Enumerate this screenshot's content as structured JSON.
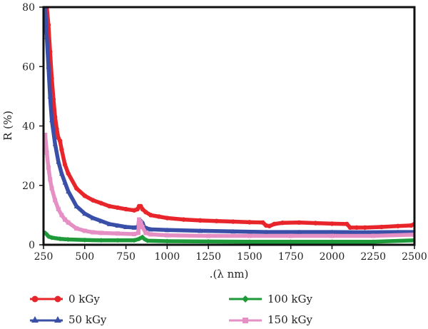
{
  "chart_data": {
    "type": "line",
    "title": "",
    "xlabel": ".(λ nm)",
    "ylabel": "R (%)",
    "xlim": [
      250,
      2500
    ],
    "ylim": [
      0,
      80
    ],
    "xticks": [
      250,
      500,
      750,
      1000,
      1250,
      1500,
      1750,
      2000,
      2250,
      2500
    ],
    "yticks": [
      0,
      20,
      40,
      60,
      80
    ],
    "grid": false,
    "legend_position": "bottom",
    "series": [
      {
        "name": "0 kGy",
        "color": "#e8252a",
        "marker": "circle",
        "points": [
          [
            270,
            80
          ],
          [
            280,
            74
          ],
          [
            290,
            65
          ],
          [
            300,
            56
          ],
          [
            310,
            49
          ],
          [
            320,
            43
          ],
          [
            330,
            39
          ],
          [
            340,
            36
          ],
          [
            350,
            35
          ],
          [
            360,
            32
          ],
          [
            380,
            27
          ],
          [
            400,
            24
          ],
          [
            450,
            19
          ],
          [
            500,
            16.5
          ],
          [
            550,
            15
          ],
          [
            600,
            14
          ],
          [
            650,
            13
          ],
          [
            700,
            12.5
          ],
          [
            750,
            12
          ],
          [
            800,
            11.6
          ],
          [
            820,
            12
          ],
          [
            830,
            13
          ],
          [
            840,
            13
          ],
          [
            850,
            12
          ],
          [
            870,
            11
          ],
          [
            900,
            10
          ],
          [
            950,
            9.5
          ],
          [
            1000,
            9
          ],
          [
            1100,
            8.5
          ],
          [
            1200,
            8.2
          ],
          [
            1300,
            8
          ],
          [
            1400,
            7.8
          ],
          [
            1500,
            7.6
          ],
          [
            1580,
            7.5
          ],
          [
            1600,
            6.5
          ],
          [
            1620,
            6.3
          ],
          [
            1650,
            7
          ],
          [
            1700,
            7.4
          ],
          [
            1800,
            7.5
          ],
          [
            1900,
            7.3
          ],
          [
            2000,
            7.1
          ],
          [
            2090,
            7
          ],
          [
            2110,
            5.8
          ],
          [
            2150,
            5.8
          ],
          [
            2200,
            5.8
          ],
          [
            2300,
            6
          ],
          [
            2400,
            6.3
          ],
          [
            2480,
            6.5
          ],
          [
            2500,
            7
          ]
        ]
      },
      {
        "name": "50 kGy",
        "color": "#3a4fa8",
        "marker": "triangle",
        "points": [
          [
            260,
            80
          ],
          [
            270,
            70
          ],
          [
            280,
            60
          ],
          [
            290,
            50
          ],
          [
            300,
            42
          ],
          [
            320,
            34
          ],
          [
            340,
            28
          ],
          [
            360,
            24
          ],
          [
            380,
            21
          ],
          [
            400,
            18
          ],
          [
            450,
            13
          ],
          [
            500,
            10.5
          ],
          [
            550,
            9
          ],
          [
            600,
            8
          ],
          [
            650,
            7
          ],
          [
            700,
            6.5
          ],
          [
            750,
            6
          ],
          [
            800,
            5.8
          ],
          [
            825,
            6
          ],
          [
            830,
            8.5
          ],
          [
            840,
            8
          ],
          [
            850,
            7.5
          ],
          [
            860,
            6
          ],
          [
            880,
            5.5
          ],
          [
            900,
            5.2
          ],
          [
            1000,
            5
          ],
          [
            1200,
            4.7
          ],
          [
            1400,
            4.5
          ],
          [
            1600,
            4.3
          ],
          [
            1800,
            4.3
          ],
          [
            2000,
            4.3
          ],
          [
            2200,
            4.2
          ],
          [
            2400,
            4.3
          ],
          [
            2500,
            4.3
          ]
        ]
      },
      {
        "name": "100 kGy",
        "color": "#1f9a3a",
        "marker": "diamond",
        "points": [
          [
            260,
            4
          ],
          [
            270,
            3.5
          ],
          [
            280,
            2.8
          ],
          [
            300,
            2.4
          ],
          [
            350,
            2
          ],
          [
            400,
            1.8
          ],
          [
            500,
            1.6
          ],
          [
            600,
            1.5
          ],
          [
            700,
            1.5
          ],
          [
            800,
            1.5
          ],
          [
            830,
            2
          ],
          [
            850,
            2.6
          ],
          [
            860,
            2
          ],
          [
            880,
            1.4
          ],
          [
            1000,
            1.2
          ],
          [
            1250,
            1.1
          ],
          [
            1500,
            1
          ],
          [
            1750,
            1
          ],
          [
            2000,
            1
          ],
          [
            2250,
            1
          ],
          [
            2500,
            1.5
          ]
        ]
      },
      {
        "name": "150 kGy",
        "color": "#e58fc4",
        "marker": "square",
        "points": [
          [
            260,
            37
          ],
          [
            270,
            31
          ],
          [
            280,
            26
          ],
          [
            290,
            22
          ],
          [
            300,
            19
          ],
          [
            320,
            15
          ],
          [
            340,
            12
          ],
          [
            360,
            10
          ],
          [
            380,
            8.5
          ],
          [
            400,
            7.5
          ],
          [
            450,
            5.5
          ],
          [
            500,
            4.7
          ],
          [
            550,
            4.2
          ],
          [
            600,
            4
          ],
          [
            700,
            3.8
          ],
          [
            800,
            3.6
          ],
          [
            825,
            4
          ],
          [
            830,
            8.5
          ],
          [
            840,
            7.5
          ],
          [
            850,
            6
          ],
          [
            870,
            4
          ],
          [
            900,
            3.5
          ],
          [
            1000,
            3.2
          ],
          [
            1250,
            3
          ],
          [
            1500,
            3
          ],
          [
            1750,
            3
          ],
          [
            2000,
            3
          ],
          [
            2250,
            3
          ],
          [
            2500,
            3.4
          ]
        ]
      }
    ]
  }
}
